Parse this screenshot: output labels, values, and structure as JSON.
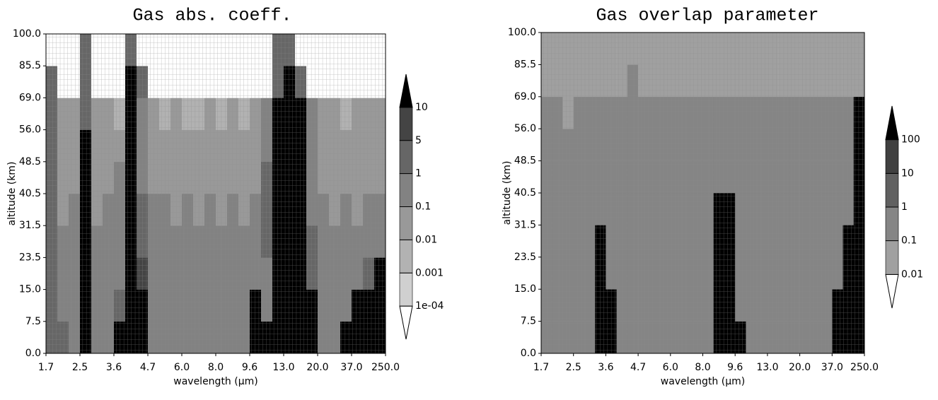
{
  "chart_data": [
    {
      "type": "heatmap",
      "title": "Gas abs. coeff.",
      "xlabel": "wavelength (µm)",
      "ylabel": "altitude (km)",
      "xtick_labels": [
        "1.7",
        "2.5",
        "3.6",
        "4.7",
        "6.0",
        "8.0",
        "9.6",
        "13.0",
        "20.0",
        "37.0",
        "250.0"
      ],
      "ytick_labels": [
        "0.0",
        "7.5",
        "15.0",
        "23.5",
        "31.5",
        "40.5",
        "48.5",
        "56.0",
        "69.0",
        "85.5",
        "100.0"
      ],
      "levels": [
        {
          "value": 0.0001,
          "label": "1e-04"
        },
        0.001,
        0.01,
        0.1,
        1,
        5,
        10
      ],
      "colors": [
        "#ffffff",
        "#d0d0d0",
        "#b2b2b2",
        "#999999",
        "#828282",
        "#666666",
        "#444444",
        "#000000"
      ],
      "z": [
        [
          2,
          2,
          0.5,
          20,
          0.5,
          0.5,
          20,
          20,
          20,
          0.5,
          0.5,
          0.5,
          0.5,
          0.5,
          0.5,
          0.5,
          0.5,
          0.5,
          20,
          20,
          20,
          20,
          20,
          20,
          0.5,
          0.5,
          20,
          20,
          20,
          20
        ],
        [
          2,
          0.5,
          0.5,
          20,
          0.5,
          0.5,
          2,
          20,
          20,
          0.5,
          0.5,
          0.5,
          0.5,
          0.5,
          0.5,
          0.5,
          0.5,
          0.5,
          20,
          0.5,
          20,
          20,
          20,
          20,
          0.5,
          0.5,
          0.5,
          20,
          20,
          20
        ],
        [
          2,
          0.5,
          0.5,
          20,
          0.5,
          0.5,
          0.5,
          20,
          7,
          0.5,
          0.5,
          0.5,
          0.5,
          0.5,
          0.5,
          0.5,
          0.5,
          0.5,
          0.5,
          0.5,
          20,
          20,
          20,
          2,
          0.5,
          0.5,
          0.5,
          0.5,
          2,
          20
        ],
        [
          2,
          0.5,
          0.5,
          20,
          0.5,
          0.5,
          0.5,
          20,
          2,
          0.5,
          0.5,
          0.5,
          0.5,
          0.5,
          0.5,
          0.5,
          0.5,
          0.5,
          0.5,
          2,
          20,
          20,
          20,
          2,
          0.5,
          0.5,
          0.5,
          0.5,
          0.5,
          0.5
        ],
        [
          2,
          0.05,
          0.5,
          20,
          0.05,
          0.5,
          0.5,
          20,
          2,
          0.5,
          0.5,
          0.05,
          0.5,
          0.05,
          0.5,
          0.05,
          0.5,
          0.05,
          0.5,
          2,
          20,
          20,
          20,
          0.5,
          0.5,
          0.05,
          0.5,
          0.05,
          0.5,
          0.5
        ],
        [
          2,
          0.05,
          0.05,
          20,
          0.05,
          0.05,
          0.5,
          20,
          0.5,
          0.05,
          0.05,
          0.05,
          0.05,
          0.05,
          0.05,
          0.05,
          0.05,
          0.05,
          0.05,
          2,
          20,
          20,
          20,
          0.5,
          0.05,
          0.05,
          0.05,
          0.05,
          0.05,
          0.05
        ],
        [
          2,
          0.05,
          0.05,
          20,
          0.05,
          0.05,
          0.05,
          20,
          0.5,
          0.05,
          0.05,
          0.05,
          0.05,
          0.05,
          0.05,
          0.05,
          0.05,
          0.05,
          0.05,
          0.5,
          20,
          20,
          20,
          0.5,
          0.05,
          0.05,
          0.05,
          0.05,
          0.05,
          0.05
        ],
        [
          2,
          0.05,
          0.05,
          2,
          0.05,
          0.05,
          0.005,
          20,
          0.5,
          0.05,
          0.005,
          0.05,
          0.005,
          0.005,
          0.05,
          0.005,
          0.05,
          0.005,
          0.05,
          0.5,
          20,
          20,
          20,
          0.5,
          0.05,
          0.05,
          0.005,
          0.05,
          0.05,
          0.05
        ],
        [
          2,
          5e-05,
          5e-05,
          2,
          5e-05,
          5e-05,
          5e-05,
          20,
          2,
          5e-05,
          5e-05,
          5e-05,
          5e-05,
          5e-05,
          5e-05,
          5e-05,
          5e-05,
          5e-05,
          5e-05,
          5e-05,
          2,
          20,
          2,
          5e-05,
          5e-05,
          5e-05,
          5e-05,
          5e-05,
          5e-05,
          5e-05
        ],
        [
          5e-05,
          5e-05,
          5e-05,
          2,
          5e-05,
          5e-05,
          5e-05,
          2,
          5e-05,
          5e-05,
          5e-05,
          5e-05,
          5e-05,
          5e-05,
          5e-05,
          5e-05,
          5e-05,
          5e-05,
          5e-05,
          5e-05,
          2,
          2,
          5e-05,
          5e-05,
          5e-05,
          5e-05,
          5e-05,
          5e-05,
          5e-05,
          5e-05
        ]
      ]
    },
    {
      "type": "heatmap",
      "title": "Gas overlap parameter",
      "xlabel": "wavelength (µm)",
      "ylabel": "altitude (km)",
      "xtick_labels": [
        "1.7",
        "2.5",
        "3.6",
        "4.7",
        "6.0",
        "8.0",
        "9.6",
        "13.0",
        "20.0",
        "37.0",
        "250.0"
      ],
      "ytick_labels": [
        "0.0",
        "7.5",
        "15.0",
        "23.5",
        "31.5",
        "40.5",
        "48.5",
        "56.0",
        "69.0",
        "85.5",
        "100.0"
      ],
      "levels": [
        0.01,
        0.1,
        1,
        10,
        100
      ],
      "colors": [
        "#ffffff",
        "#a0a0a0",
        "#858585",
        "#606060",
        "#404040",
        "#000000"
      ],
      "z": [
        [
          0.5,
          0.5,
          0.5,
          0.5,
          0.5,
          200,
          200,
          0.5,
          0.5,
          0.5,
          0.5,
          0.5,
          0.5,
          0.5,
          0.5,
          0.5,
          200,
          200,
          200,
          0.5,
          0.5,
          0.5,
          0.5,
          0.5,
          0.5,
          0.5,
          0.5,
          200,
          200,
          200
        ],
        [
          0.5,
          0.5,
          0.5,
          0.5,
          0.5,
          200,
          200,
          0.5,
          0.5,
          0.5,
          0.5,
          0.5,
          0.5,
          0.5,
          0.5,
          0.5,
          200,
          200,
          0.5,
          0.5,
          0.5,
          0.5,
          0.5,
          0.5,
          0.5,
          0.5,
          0.5,
          200,
          200,
          200
        ],
        [
          0.5,
          0.5,
          0.5,
          0.5,
          0.5,
          200,
          0.5,
          0.5,
          0.5,
          0.5,
          0.5,
          0.5,
          0.5,
          0.5,
          0.5,
          0.5,
          200,
          200,
          0.5,
          0.5,
          0.5,
          0.5,
          0.5,
          0.5,
          0.5,
          0.5,
          0.5,
          0.5,
          200,
          200
        ],
        [
          0.5,
          0.5,
          0.5,
          0.5,
          0.5,
          200,
          0.5,
          0.5,
          0.5,
          0.5,
          0.5,
          0.5,
          0.5,
          0.5,
          0.5,
          0.5,
          200,
          200,
          0.5,
          0.5,
          0.5,
          0.5,
          0.5,
          0.5,
          0.5,
          0.5,
          0.5,
          0.5,
          200,
          200
        ],
        [
          0.5,
          0.5,
          0.5,
          0.5,
          0.5,
          0.5,
          0.5,
          0.5,
          0.5,
          0.5,
          0.5,
          0.5,
          0.5,
          0.5,
          0.5,
          0.5,
          200,
          200,
          0.5,
          0.5,
          0.5,
          0.5,
          0.5,
          0.5,
          0.5,
          0.5,
          0.5,
          0.5,
          0.5,
          200
        ],
        [
          0.5,
          0.5,
          0.5,
          0.5,
          0.5,
          0.5,
          0.5,
          0.5,
          0.5,
          0.5,
          0.5,
          0.5,
          0.5,
          0.5,
          0.5,
          0.5,
          0.5,
          0.5,
          0.5,
          0.5,
          0.5,
          0.5,
          0.5,
          0.5,
          0.5,
          0.5,
          0.5,
          0.5,
          0.5,
          200
        ],
        [
          0.5,
          0.5,
          0.5,
          0.5,
          0.5,
          0.5,
          0.5,
          0.5,
          0.5,
          0.5,
          0.5,
          0.5,
          0.5,
          0.5,
          0.5,
          0.5,
          0.5,
          0.5,
          0.5,
          0.5,
          0.5,
          0.5,
          0.5,
          0.5,
          0.5,
          0.5,
          0.5,
          0.5,
          0.5,
          200
        ],
        [
          0.5,
          0.5,
          0.05,
          0.5,
          0.5,
          0.5,
          0.5,
          0.5,
          0.5,
          0.5,
          0.5,
          0.5,
          0.5,
          0.5,
          0.5,
          0.5,
          0.5,
          0.5,
          0.5,
          0.5,
          0.5,
          0.5,
          0.5,
          0.5,
          0.5,
          0.5,
          0.5,
          0.5,
          0.5,
          200
        ],
        [
          0.05,
          0.05,
          0.05,
          0.05,
          0.05,
          0.05,
          0.05,
          0.05,
          0.5,
          0.05,
          0.05,
          0.05,
          0.05,
          0.05,
          0.05,
          0.05,
          0.05,
          0.05,
          0.05,
          0.05,
          0.05,
          0.05,
          0.05,
          0.05,
          0.05,
          0.05,
          0.05,
          0.05,
          0.05,
          0.05
        ],
        [
          0.05,
          0.05,
          0.05,
          0.05,
          0.05,
          0.05,
          0.05,
          0.05,
          0.05,
          0.05,
          0.05,
          0.05,
          0.05,
          0.05,
          0.05,
          0.05,
          0.05,
          0.05,
          0.05,
          0.05,
          0.05,
          0.05,
          0.05,
          0.05,
          0.05,
          0.05,
          0.05,
          0.05,
          0.05,
          0.05
        ]
      ]
    }
  ]
}
